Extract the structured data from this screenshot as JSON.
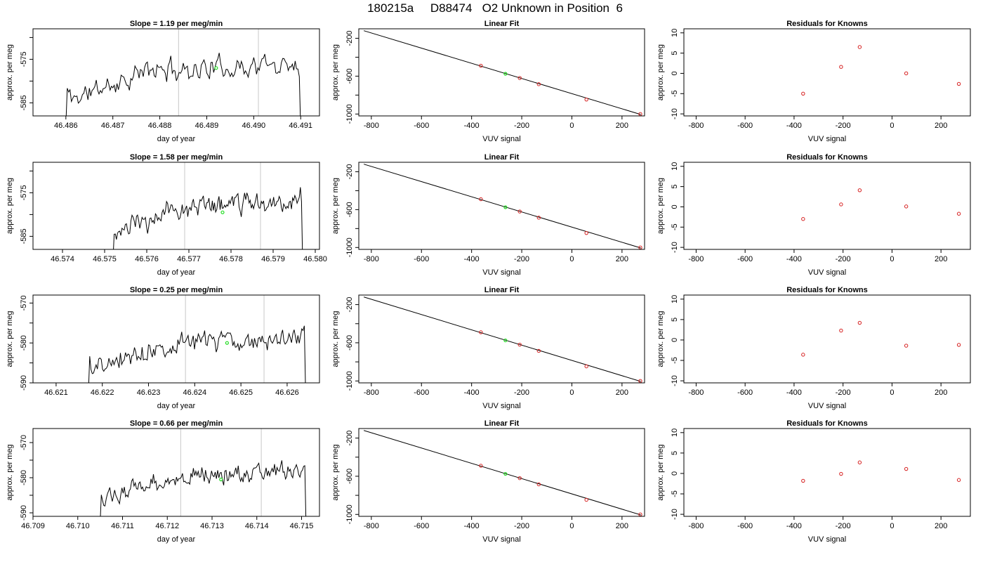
{
  "figure_title": "180215a     D88474   O2 Unknown in Position  6",
  "chart_data": [
    {
      "type": "line",
      "row": 1,
      "col": 1,
      "title": "Slope =  1.19  per meg/min",
      "xlabel": "day of year",
      "ylabel": "approx. per meg",
      "xlim": [
        46.4853,
        46.4914
      ],
      "ylim": [
        -588,
        -568
      ],
      "xticks": [
        46.486,
        46.487,
        46.488,
        46.489,
        46.49,
        46.491
      ],
      "xtick_labels": [
        "46.486",
        "46.487",
        "46.488",
        "46.489",
        "46.490",
        "46.491"
      ],
      "yticks": [
        -585,
        -580,
        -575,
        -570
      ],
      "ytick_labels": [
        "-585",
        "",
        "-575",
        ""
      ],
      "trace_x_range": [
        46.486,
        46.491
      ],
      "trace_level": -578.5,
      "trace_seed": 11,
      "vlines": [
        46.4884,
        46.4901
      ],
      "green_point": [
        46.4892,
        -577.0
      ]
    },
    {
      "type": "scatter",
      "row": 1,
      "col": 2,
      "title": "Linear Fit",
      "xlabel": "VUV signal",
      "ylabel": "approx. per meg",
      "xlim": [
        -850,
        290
      ],
      "ylim": [
        -1020,
        -100
      ],
      "xticks": [
        -800,
        -600,
        -400,
        -200,
        0,
        200
      ],
      "xtick_labels": [
        "-800",
        "-600",
        "-400",
        "-200",
        "0",
        "200"
      ],
      "yticks": [
        -1000,
        -800,
        -600,
        -400,
        -200
      ],
      "ytick_labels": [
        "-1000",
        "",
        "-600",
        "",
        "-200"
      ],
      "fit_line": [
        [
          -830,
          -120
        ],
        [
          275,
          -1005
        ]
      ],
      "points": [
        [
          -363,
          -490
        ],
        [
          -208,
          -620
        ],
        [
          -132,
          -685
        ],
        [
          58,
          -847
        ],
        [
          273,
          -1000
        ]
      ],
      "green_point": [
        -265,
        -575
      ]
    },
    {
      "type": "scatter",
      "row": 1,
      "col": 3,
      "title": "Residuals for Knowns",
      "xlabel": "VUV signal",
      "ylabel": "approx. per meg",
      "xlim": [
        -850,
        320
      ],
      "ylim": [
        -10.5,
        11
      ],
      "xticks": [
        -800,
        -600,
        -400,
        -200,
        0,
        200
      ],
      "xtick_labels": [
        "-800",
        "-600",
        "-400",
        "-200",
        "0",
        "200"
      ],
      "yticks": [
        -10,
        -5,
        0,
        5,
        10
      ],
      "ytick_labels": [
        "-10",
        "-5",
        "0",
        "5",
        "10"
      ],
      "points": [
        [
          -363,
          -5.0
        ],
        [
          -208,
          1.6
        ],
        [
          -132,
          6.5
        ],
        [
          58,
          0.0
        ],
        [
          273,
          -2.6
        ]
      ]
    },
    {
      "type": "line",
      "row": 2,
      "col": 1,
      "title": "Slope =  1.58  per meg/min",
      "xlabel": "day of year",
      "ylabel": "approx. per meg",
      "xlim": [
        46.5733,
        46.5801
      ],
      "ylim": [
        -588,
        -568
      ],
      "xticks": [
        46.574,
        46.575,
        46.576,
        46.577,
        46.578,
        46.579,
        46.58
      ],
      "xtick_labels": [
        "46.574",
        "46.575",
        "46.576",
        "46.577",
        "46.578",
        "46.579",
        "46.580"
      ],
      "yticks": [
        -585,
        -580,
        -575,
        -570
      ],
      "ytick_labels": [
        "-585",
        "",
        "-575",
        ""
      ],
      "trace_x_range": [
        46.5752,
        46.5797
      ],
      "trace_level": -579.0,
      "trace_seed": 23,
      "vlines": [
        46.5769,
        46.5787
      ],
      "green_point": [
        46.5778,
        -579.5
      ]
    },
    {
      "type": "scatter",
      "row": 2,
      "col": 2,
      "title": "Linear Fit",
      "xlabel": "VUV signal",
      "ylabel": "approx. per meg",
      "xlim": [
        -850,
        290
      ],
      "ylim": [
        -1020,
        -100
      ],
      "xticks": [
        -800,
        -600,
        -400,
        -200,
        0,
        200
      ],
      "xtick_labels": [
        "-800",
        "-600",
        "-400",
        "-200",
        "0",
        "200"
      ],
      "yticks": [
        -1000,
        -800,
        -600,
        -400,
        -200
      ],
      "ytick_labels": [
        "-1000",
        "",
        "-600",
        "",
        "-200"
      ],
      "fit_line": [
        [
          -830,
          -120
        ],
        [
          275,
          -1005
        ]
      ],
      "points": [
        [
          -363,
          -490
        ],
        [
          -208,
          -620
        ],
        [
          -132,
          -685
        ],
        [
          58,
          -847
        ],
        [
          273,
          -1000
        ]
      ],
      "green_point": [
        -265,
        -575
      ]
    },
    {
      "type": "scatter",
      "row": 2,
      "col": 3,
      "title": "Residuals for Knowns",
      "xlabel": "VUV signal",
      "ylabel": "approx. per meg",
      "xlim": [
        -850,
        320
      ],
      "ylim": [
        -10.5,
        11
      ],
      "xticks": [
        -800,
        -600,
        -400,
        -200,
        0,
        200
      ],
      "xtick_labels": [
        "-800",
        "-600",
        "-400",
        "-200",
        "0",
        "200"
      ],
      "yticks": [
        -10,
        -5,
        0,
        5,
        10
      ],
      "ytick_labels": [
        "-10",
        "-5",
        "0",
        "5",
        "10"
      ],
      "points": [
        [
          -363,
          -3.0
        ],
        [
          -208,
          0.6
        ],
        [
          -132,
          4.1
        ],
        [
          58,
          0.1
        ],
        [
          273,
          -1.7
        ]
      ]
    },
    {
      "type": "line",
      "row": 3,
      "col": 1,
      "title": "Slope =  0.25  per meg/min",
      "xlabel": "day of year",
      "ylabel": "approx. per meg",
      "xlim": [
        46.6205,
        46.6267
      ],
      "ylim": [
        -590,
        -568
      ],
      "xticks": [
        46.621,
        46.622,
        46.623,
        46.624,
        46.625,
        46.626
      ],
      "xtick_labels": [
        "46.621",
        "46.622",
        "46.623",
        "46.624",
        "46.625",
        "46.626"
      ],
      "yticks": [
        -590,
        -585,
        -580,
        -575,
        -570
      ],
      "ytick_labels": [
        "-590",
        "",
        "-580",
        "",
        "-570"
      ],
      "trace_x_range": [
        46.6217,
        46.6264
      ],
      "trace_level": -581.0,
      "trace_seed": 37,
      "vlines": [
        46.6238,
        46.6255
      ],
      "green_point": [
        46.6247,
        -580.0
      ]
    },
    {
      "type": "scatter",
      "row": 3,
      "col": 2,
      "title": "Linear Fit",
      "xlabel": "VUV signal",
      "ylabel": "approx. per meg",
      "xlim": [
        -850,
        290
      ],
      "ylim": [
        -1020,
        -100
      ],
      "xticks": [
        -800,
        -600,
        -400,
        -200,
        0,
        200
      ],
      "xtick_labels": [
        "-800",
        "-600",
        "-400",
        "-200",
        "0",
        "200"
      ],
      "yticks": [
        -1000,
        -800,
        -600,
        -400,
        -200
      ],
      "ytick_labels": [
        "-1000",
        "",
        "-600",
        "",
        "-200"
      ],
      "fit_line": [
        [
          -830,
          -120
        ],
        [
          275,
          -1005
        ]
      ],
      "points": [
        [
          -363,
          -490
        ],
        [
          -208,
          -620
        ],
        [
          -132,
          -685
        ],
        [
          58,
          -847
        ],
        [
          273,
          -1000
        ]
      ],
      "green_point": [
        -265,
        -575
      ]
    },
    {
      "type": "scatter",
      "row": 3,
      "col": 3,
      "title": "Residuals for Knowns",
      "xlabel": "VUV signal",
      "ylabel": "approx. per meg",
      "xlim": [
        -850,
        320
      ],
      "ylim": [
        -10.5,
        11
      ],
      "xticks": [
        -800,
        -600,
        -400,
        -200,
        0,
        200
      ],
      "xtick_labels": [
        "-800",
        "-600",
        "-400",
        "-200",
        "0",
        "200"
      ],
      "yticks": [
        -10,
        -5,
        0,
        5,
        10
      ],
      "ytick_labels": [
        "-10",
        "-5",
        "0",
        "5",
        "10"
      ],
      "points": [
        [
          -363,
          -3.6
        ],
        [
          -208,
          2.3
        ],
        [
          -132,
          4.2
        ],
        [
          58,
          -1.4
        ],
        [
          273,
          -1.2
        ]
      ]
    },
    {
      "type": "line",
      "row": 4,
      "col": 1,
      "title": "Slope =  0.66  per meg/min",
      "xlabel": "day of year",
      "ylabel": "approx. per meg",
      "xlim": [
        46.709,
        46.7154
      ],
      "ylim": [
        -591,
        -566
      ],
      "xticks": [
        46.709,
        46.71,
        46.711,
        46.712,
        46.713,
        46.714,
        46.715
      ],
      "xtick_labels": [
        "46.709",
        "46.710",
        "46.711",
        "46.712",
        "46.713",
        "46.714",
        "46.715"
      ],
      "yticks": [
        -590,
        -585,
        -580,
        -575,
        -570
      ],
      "ytick_labels": [
        "-590",
        "",
        "-580",
        "",
        "-570"
      ],
      "trace_x_range": [
        46.7105,
        46.7151
      ],
      "trace_level": -580.5,
      "trace_seed": 53,
      "vlines": [
        46.7123,
        46.7141
      ],
      "green_point": [
        46.7132,
        -580.5
      ]
    },
    {
      "type": "scatter",
      "row": 4,
      "col": 2,
      "title": "Linear Fit",
      "xlabel": "VUV signal",
      "ylabel": "approx. per meg",
      "xlim": [
        -850,
        290
      ],
      "ylim": [
        -1020,
        -100
      ],
      "xticks": [
        -800,
        -600,
        -400,
        -200,
        0,
        200
      ],
      "xtick_labels": [
        "-800",
        "-600",
        "-400",
        "-200",
        "0",
        "200"
      ],
      "yticks": [
        -1000,
        -800,
        -600,
        -400,
        -200
      ],
      "ytick_labels": [
        "-1000",
        "",
        "-600",
        "",
        "-200"
      ],
      "fit_line": [
        [
          -830,
          -120
        ],
        [
          275,
          -1005
        ]
      ],
      "points": [
        [
          -363,
          -490
        ],
        [
          -208,
          -620
        ],
        [
          -132,
          -685
        ],
        [
          58,
          -847
        ],
        [
          273,
          -1000
        ]
      ],
      "green_point": [
        -265,
        -575
      ]
    },
    {
      "type": "scatter",
      "row": 4,
      "col": 3,
      "title": "Residuals for Knowns",
      "xlabel": "VUV signal",
      "ylabel": "approx. per meg",
      "xlim": [
        -850,
        320
      ],
      "ylim": [
        -10.5,
        11
      ],
      "xticks": [
        -800,
        -600,
        -400,
        -200,
        0,
        200
      ],
      "xtick_labels": [
        "-800",
        "-600",
        "-400",
        "-200",
        "0",
        "200"
      ],
      "yticks": [
        -10,
        -5,
        0,
        5,
        10
      ],
      "ytick_labels": [
        "-10",
        "-5",
        "0",
        "5",
        "10"
      ],
      "points": [
        [
          -363,
          -1.8
        ],
        [
          -208,
          -0.1
        ],
        [
          -132,
          2.7
        ],
        [
          58,
          1.1
        ],
        [
          273,
          -1.6
        ]
      ]
    }
  ]
}
